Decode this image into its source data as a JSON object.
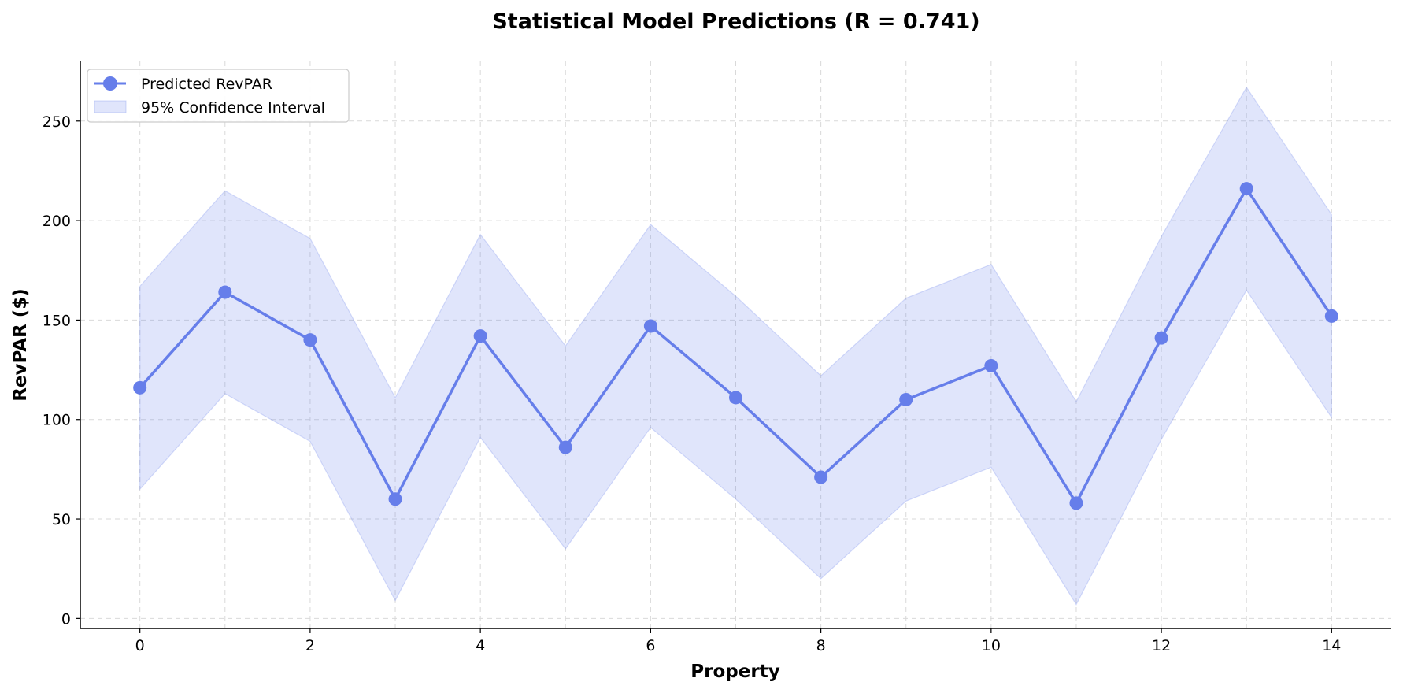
{
  "chart_data": {
    "type": "line",
    "title": "Statistical Model Predictions (R = 0.741)",
    "xlabel": "Property",
    "ylabel": "RevPAR ($)",
    "xlim": [
      -0.7,
      14.7
    ],
    "ylim": [
      -5,
      280
    ],
    "x_ticks": [
      0,
      2,
      4,
      6,
      8,
      10,
      12,
      14
    ],
    "y_ticks": [
      0,
      50,
      100,
      150,
      200,
      250
    ],
    "grid": true,
    "legend_position": "top-left",
    "series": [
      {
        "name": "Predicted RevPAR",
        "x": [
          0,
          1,
          2,
          3,
          4,
          5,
          6,
          7,
          8,
          9,
          10,
          11,
          12,
          13,
          14
        ],
        "values": [
          116,
          164,
          140,
          60,
          142,
          86,
          147,
          111,
          71,
          110,
          127,
          58,
          141,
          216,
          152
        ],
        "color": "#667eea"
      }
    ],
    "confidence_interval": {
      "name": "95% Confidence Interval",
      "lower": [
        65,
        113,
        89,
        9,
        91,
        35,
        96,
        60,
        20,
        59,
        76,
        7,
        90,
        165,
        101
      ],
      "upper": [
        167,
        215,
        191,
        111,
        193,
        137,
        198,
        162,
        122,
        161,
        178,
        109,
        192,
        267,
        203
      ],
      "color": "#667eea"
    }
  }
}
